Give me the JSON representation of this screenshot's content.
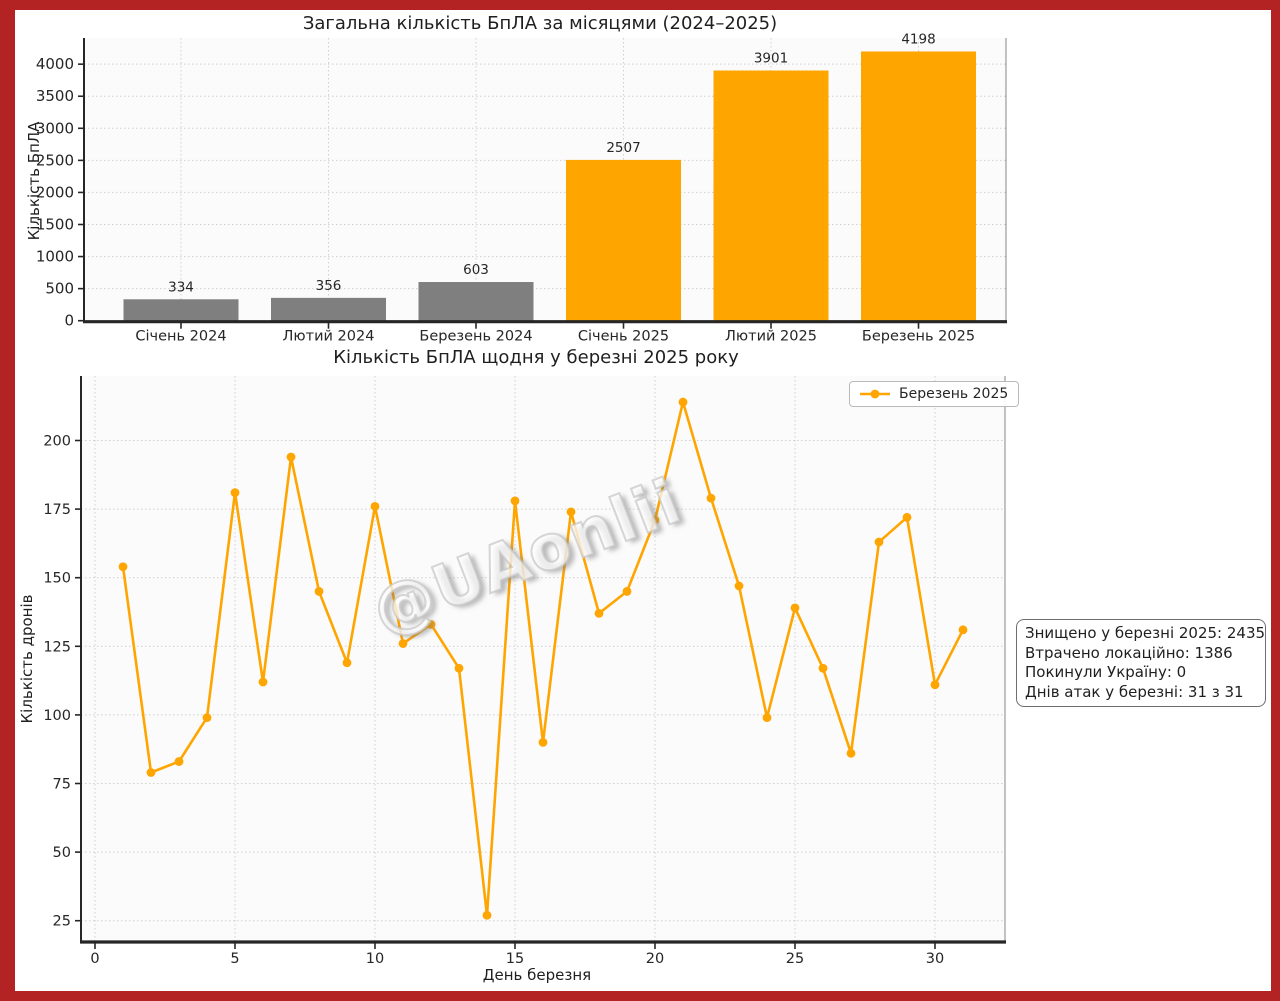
{
  "page": {
    "watermark": "@UAonlii",
    "border_color": "#b42323",
    "background_color": "#ffffff"
  },
  "chart_data": [
    {
      "type": "bar",
      "title": "Загальна кількість БпЛА за місяцями (2024–2025)",
      "ylabel": "Кількість БпЛА",
      "categories": [
        "Січень 2024",
        "Лютий 2024",
        "Березень 2024",
        "Січень 2025",
        "Лютий 2025",
        "Березень 2025"
      ],
      "values": [
        334,
        356,
        603,
        2507,
        3901,
        4198
      ],
      "value_labels": [
        "334",
        "356",
        "603",
        "2507",
        "3901",
        "4198"
      ],
      "bar_colors": [
        "#7f7f7f",
        "#7f7f7f",
        "#7f7f7f",
        "#ffa500",
        "#ffa500",
        "#ffa500"
      ],
      "yticks": [
        0,
        500,
        1000,
        1500,
        2000,
        2500,
        3000,
        3500,
        4000
      ],
      "ylim": [
        0,
        4408
      ],
      "grid": true
    },
    {
      "type": "line",
      "title": "Кількість БпЛА щодня у березні 2025 року",
      "xlabel": "День березня",
      "ylabel": "Кількість дронів",
      "x": [
        1,
        2,
        3,
        4,
        5,
        6,
        7,
        8,
        9,
        10,
        11,
        12,
        13,
        14,
        15,
        16,
        17,
        18,
        19,
        20,
        21,
        22,
        23,
        24,
        25,
        26,
        27,
        28,
        29,
        30,
        31
      ],
      "series": [
        {
          "name": "Березень 2025",
          "color": "#ffa500",
          "values": [
            154,
            79,
            83,
            99,
            181,
            112,
            194,
            145,
            119,
            176,
            126,
            133,
            117,
            27,
            178,
            90,
            174,
            137,
            145,
            171,
            214,
            179,
            147,
            99,
            139,
            117,
            86,
            163,
            172,
            111,
            131
          ]
        }
      ],
      "xticks": [
        0,
        5,
        10,
        15,
        20,
        25,
        30
      ],
      "yticks": [
        25,
        50,
        75,
        100,
        125,
        150,
        175,
        200
      ],
      "xlim": [
        -0.5,
        32.5
      ],
      "ylim": [
        17.6,
        223.4
      ],
      "grid": true,
      "legend_position": "top-right",
      "annotation_box": {
        "lines": [
          "Знищено у березні 2025: 2435",
          "Втрачено локаційно: 1386",
          "Покинули Україну: 0",
          "Днів атак у березні: 31 з 31"
        ]
      }
    }
  ]
}
